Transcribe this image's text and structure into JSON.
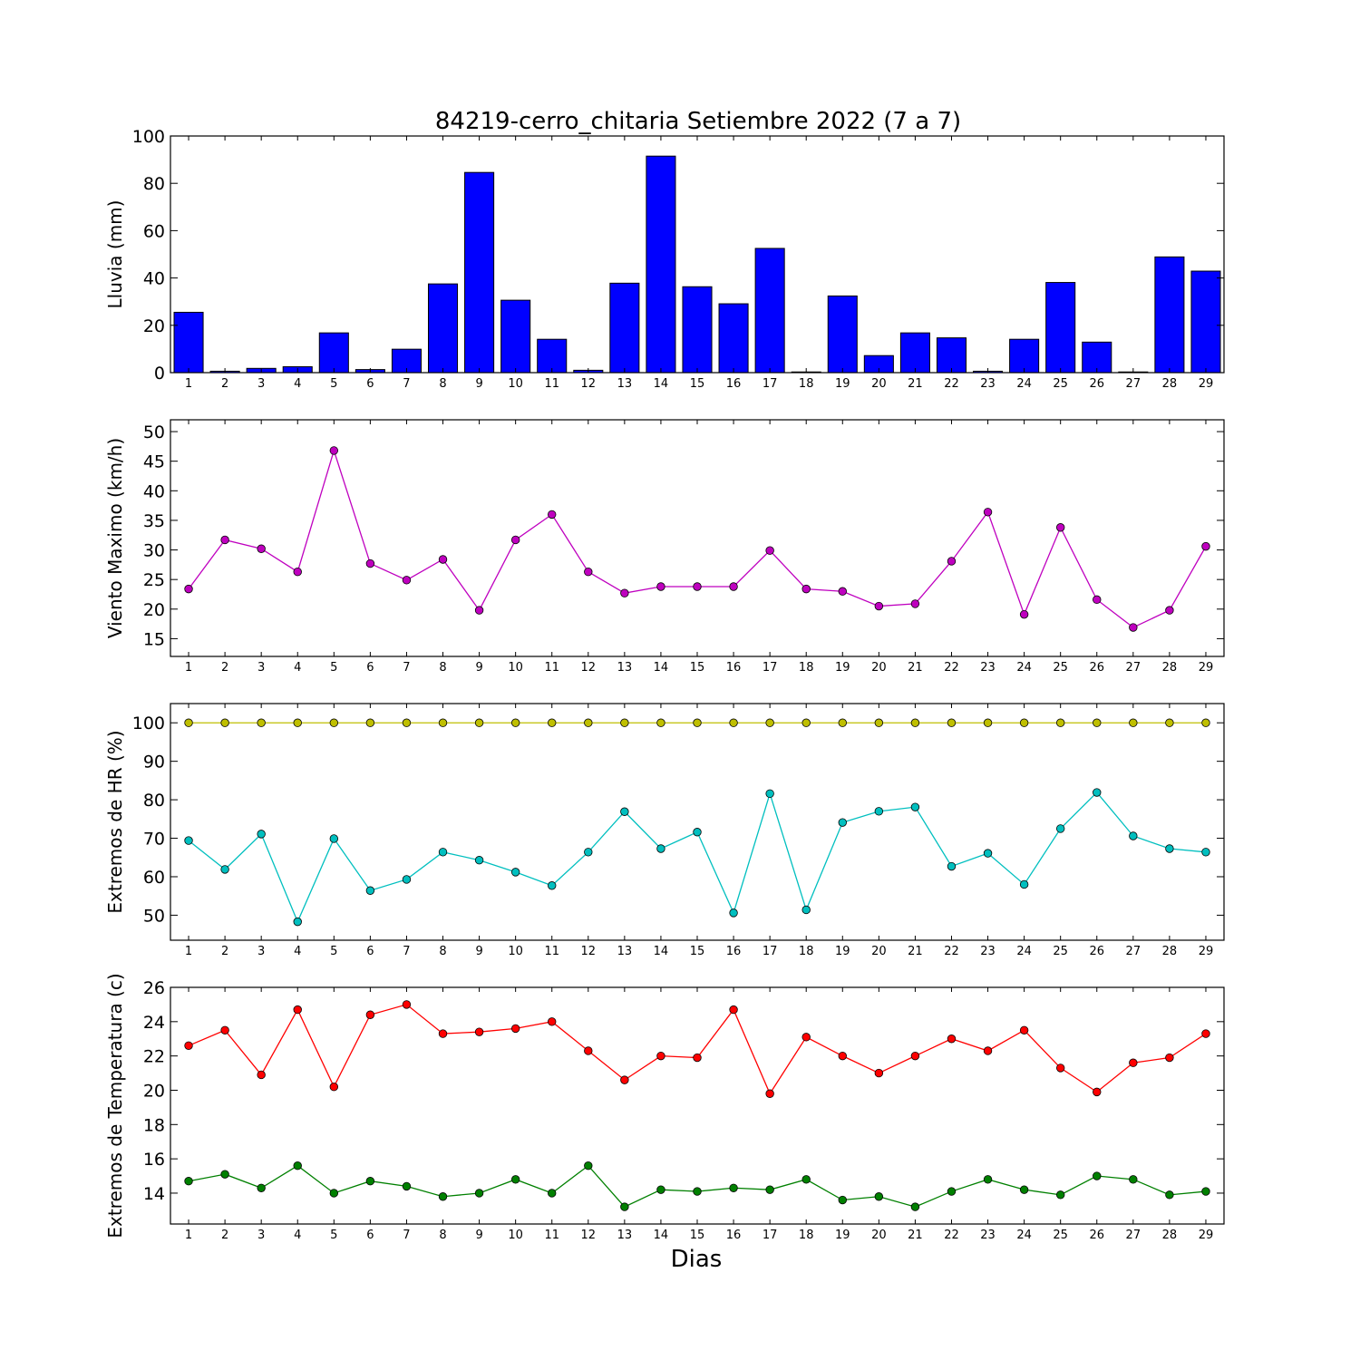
{
  "figure": {
    "title": "84219-cerro_chitaria Setiembre 2022  (7 a 7)",
    "xlabel": "Dias"
  },
  "chart_data": [
    {
      "type": "bar",
      "ylabel": "Lluvia (mm)",
      "ylim": [
        0,
        100
      ],
      "yticks": [
        0,
        20,
        40,
        60,
        80,
        100
      ],
      "categories": [
        1,
        2,
        3,
        4,
        5,
        6,
        7,
        8,
        9,
        10,
        11,
        12,
        13,
        14,
        15,
        16,
        17,
        18,
        19,
        20,
        21,
        22,
        23,
        24,
        25,
        26,
        27,
        28,
        29
      ],
      "series": [
        {
          "color": "#0000ff",
          "values": [
            25.5,
            0.6,
            1.8,
            2.5,
            16.8,
            1.3,
            9.9,
            37.5,
            84.6,
            30.6,
            14.1,
            1.0,
            37.8,
            91.5,
            36.3,
            29.1,
            52.5,
            0.3,
            32.4,
            7.2,
            16.8,
            14.7,
            0.6,
            14.1,
            38.1,
            12.9,
            0.3,
            48.9,
            42.9
          ]
        }
      ],
      "grid": false
    },
    {
      "type": "line",
      "ylabel": "Viento Maximo (km/h)",
      "ylim": [
        12,
        52
      ],
      "yticks": [
        15,
        20,
        25,
        30,
        35,
        40,
        45,
        50
      ],
      "categories": [
        1,
        2,
        3,
        4,
        5,
        6,
        7,
        8,
        9,
        10,
        11,
        12,
        13,
        14,
        15,
        16,
        17,
        18,
        19,
        20,
        21,
        22,
        23,
        24,
        25,
        26,
        27,
        28,
        29
      ],
      "series": [
        {
          "color": "#bf00bf",
          "values": [
            23.4,
            31.7,
            30.2,
            26.3,
            46.8,
            27.7,
            24.9,
            28.4,
            19.8,
            31.7,
            36.0,
            26.3,
            22.7,
            23.8,
            23.8,
            23.8,
            29.9,
            23.4,
            23.0,
            20.5,
            20.9,
            28.1,
            36.4,
            19.1,
            33.8,
            21.6,
            16.9,
            19.8,
            30.6
          ]
        }
      ],
      "grid": false
    },
    {
      "type": "line",
      "ylabel": "Extremos de HR (%)",
      "ylim": [
        43.5,
        105
      ],
      "yticks": [
        50,
        60,
        70,
        80,
        90,
        100
      ],
      "categories": [
        1,
        2,
        3,
        4,
        5,
        6,
        7,
        8,
        9,
        10,
        11,
        12,
        13,
        14,
        15,
        16,
        17,
        18,
        19,
        20,
        21,
        22,
        23,
        24,
        25,
        26,
        27,
        28,
        29
      ],
      "series": [
        {
          "color": "#bfbf00",
          "values": [
            100,
            100,
            100,
            100,
            100,
            100,
            100,
            100,
            100,
            100,
            100,
            100,
            100,
            100,
            100,
            100,
            100,
            100,
            100,
            100,
            100,
            100,
            100,
            100,
            100,
            100,
            100,
            100,
            100
          ]
        },
        {
          "color": "#00bfbf",
          "values": [
            69.4,
            61.9,
            71.1,
            48.3,
            69.9,
            56.4,
            59.3,
            66.4,
            64.3,
            61.2,
            57.7,
            66.4,
            76.9,
            67.3,
            71.6,
            50.6,
            81.6,
            51.4,
            74.1,
            77.0,
            78.1,
            62.7,
            66.1,
            58.0,
            72.5,
            81.9,
            70.6,
            67.3,
            66.4
          ]
        }
      ],
      "grid": false
    },
    {
      "type": "line",
      "ylabel": "Extremos de Temperatura (c)",
      "ylim": [
        12.2,
        26
      ],
      "yticks": [
        14,
        16,
        18,
        20,
        22,
        24,
        26
      ],
      "categories": [
        1,
        2,
        3,
        4,
        5,
        6,
        7,
        8,
        9,
        10,
        11,
        12,
        13,
        14,
        15,
        16,
        17,
        18,
        19,
        20,
        21,
        22,
        23,
        24,
        25,
        26,
        27,
        28,
        29
      ],
      "series": [
        {
          "color": "#ff0000",
          "values": [
            22.6,
            23.5,
            20.9,
            24.7,
            20.2,
            24.4,
            25.0,
            23.3,
            23.4,
            23.6,
            24.0,
            22.3,
            20.6,
            22.0,
            21.9,
            24.7,
            19.8,
            23.1,
            22.0,
            21.0,
            22.0,
            23.0,
            22.3,
            23.5,
            21.3,
            19.9,
            21.6,
            21.9,
            23.3
          ]
        },
        {
          "color": "#008000",
          "values": [
            14.7,
            15.1,
            14.3,
            15.6,
            14.0,
            14.7,
            14.4,
            13.8,
            14.0,
            14.8,
            14.0,
            15.6,
            13.2,
            14.2,
            14.1,
            14.3,
            14.2,
            14.8,
            13.6,
            13.8,
            13.2,
            14.1,
            14.8,
            14.2,
            13.9,
            15.0,
            14.8,
            13.9,
            14.1
          ]
        }
      ],
      "grid": false
    }
  ]
}
